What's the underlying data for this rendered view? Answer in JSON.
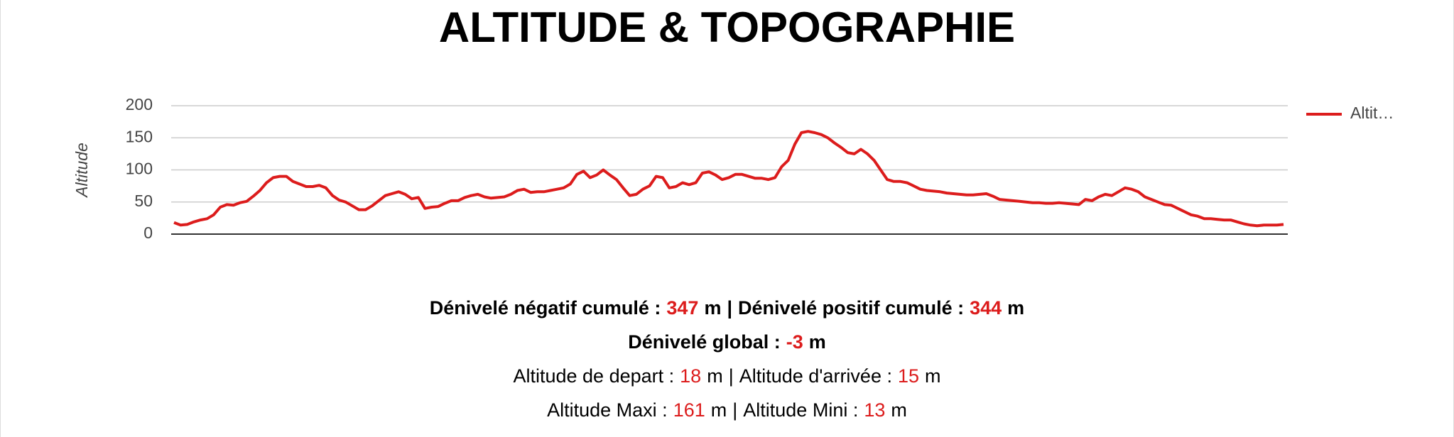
{
  "title": "ALTITUDE & TOPOGRAPHIE",
  "chart_data": {
    "type": "line",
    "y_label": "Altitude",
    "ylim": [
      0,
      200
    ],
    "yticks": [
      0,
      50,
      100,
      150,
      200
    ],
    "grid": true,
    "legend": "right",
    "series": [
      {
        "name": "Altit…",
        "color": "#dc1c1c",
        "values": [
          18,
          14,
          15,
          19,
          22,
          24,
          30,
          42,
          46,
          45,
          49,
          51,
          59,
          68,
          80,
          88,
          90,
          90,
          82,
          78,
          74,
          74,
          76,
          72,
          60,
          53,
          50,
          44,
          38,
          38,
          44,
          52,
          60,
          63,
          66,
          62,
          55,
          57,
          40,
          42,
          43,
          48,
          52,
          52,
          57,
          60,
          62,
          58,
          56,
          57,
          58,
          62,
          68,
          70,
          65,
          66,
          66,
          68,
          70,
          72,
          78,
          93,
          98,
          88,
          92,
          100,
          92,
          85,
          72,
          60,
          62,
          70,
          75,
          90,
          88,
          72,
          74,
          80,
          77,
          80,
          95,
          97,
          92,
          85,
          88,
          93,
          93,
          90,
          87,
          87,
          85,
          88,
          105,
          115,
          140,
          158,
          160,
          158,
          155,
          150,
          142,
          135,
          127,
          125,
          132,
          125,
          115,
          100,
          85,
          82,
          82,
          80,
          75,
          70,
          68,
          67,
          66,
          64,
          63,
          62,
          61,
          61,
          62,
          63,
          59,
          54,
          53,
          52,
          51,
          50,
          49,
          49,
          48,
          48,
          49,
          48,
          47,
          46,
          54,
          52,
          58,
          62,
          60,
          66,
          72,
          70,
          66,
          58,
          54,
          50,
          46,
          45,
          40,
          35,
          30,
          28,
          24,
          24,
          23,
          22,
          22,
          19,
          16,
          14,
          13,
          14,
          14,
          14,
          15
        ]
      }
    ]
  },
  "summary_separator": "|",
  "summary": [
    {
      "style": "bold",
      "items": [
        {
          "label": "Dénivelé négatif cumulé :",
          "value": 347,
          "unit": "m"
        },
        {
          "label": "Dénivelé positif cumulé :",
          "value": 344,
          "unit": "m"
        }
      ]
    },
    {
      "style": "bold",
      "items": [
        {
          "label": "Dénivelé global :",
          "value": -3,
          "unit": "m"
        }
      ]
    },
    {
      "style": "normal",
      "items": [
        {
          "label": "Altitude de depart :",
          "value": 18,
          "unit": "m"
        },
        {
          "label": "Altitude d'arrivée :",
          "value": 15,
          "unit": "m"
        }
      ]
    },
    {
      "style": "normal",
      "items": [
        {
          "label": "Altitude Maxi :",
          "value": 161,
          "unit": "m"
        },
        {
          "label": "Altitude Mini :",
          "value": 13,
          "unit": "m"
        }
      ]
    }
  ]
}
